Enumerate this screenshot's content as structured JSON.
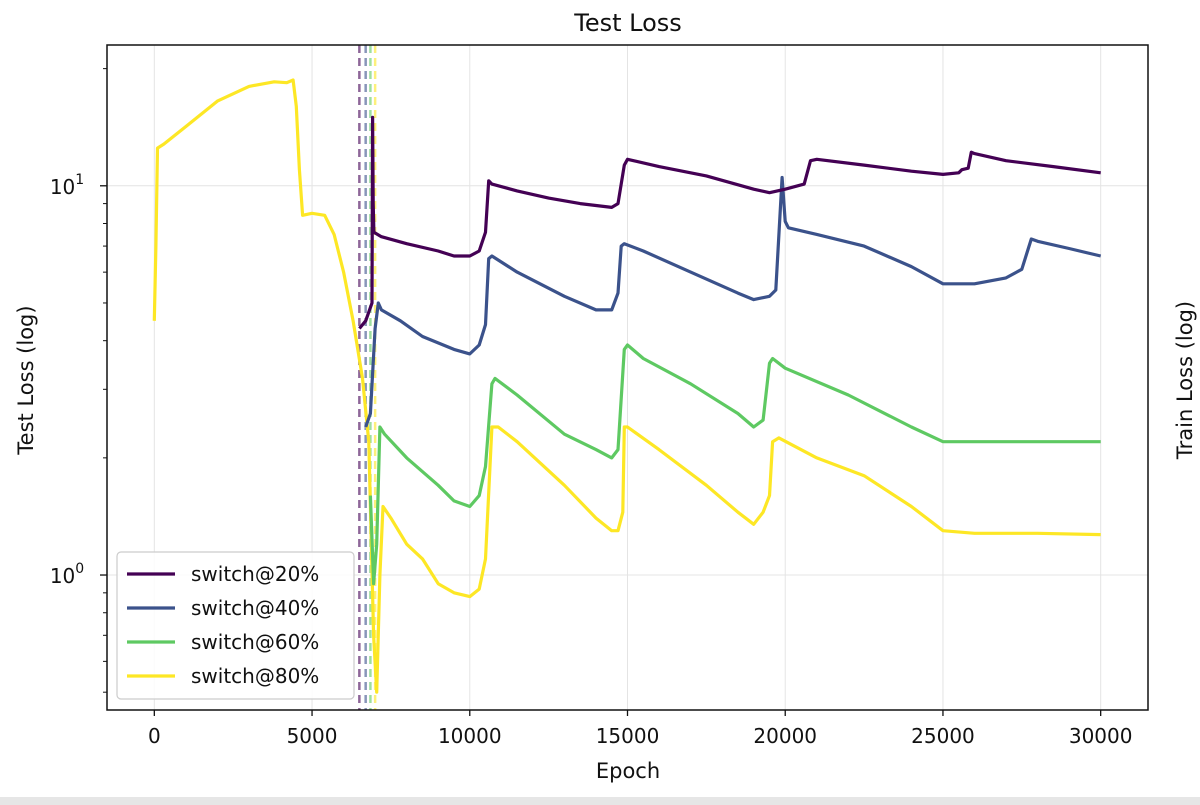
{
  "chart_data": {
    "type": "line",
    "title": "Test Loss",
    "xlabel": "Epoch",
    "ylabel": "Test Loss (log)",
    "y2label": "Train Loss (log)",
    "yscale": "log",
    "xlim": [
      -1500,
      31500
    ],
    "ylim": [
      0.45,
      23
    ],
    "xticks": [
      0,
      5000,
      10000,
      15000,
      20000,
      25000,
      30000
    ],
    "xtick_labels": [
      "0",
      "5000",
      "10000",
      "15000",
      "20000",
      "25000",
      "30000"
    ],
    "yticks": [
      {
        "value": 1,
        "base": "10",
        "exp": "0"
      },
      {
        "value": 10,
        "base": "10",
        "exp": "1"
      }
    ],
    "grid": true,
    "legend_position": "lower-left",
    "vlines": [
      {
        "x": 6500,
        "color": "#440154"
      },
      {
        "x": 6700,
        "color": "#3b528b"
      },
      {
        "x": 6850,
        "color": "#5ec962"
      },
      {
        "x": 7000,
        "color": "#fde725"
      }
    ],
    "series": [
      {
        "name": "switch@20%",
        "color": "#440154",
        "points": [
          [
            6500,
            4.3
          ],
          [
            6700,
            4.5
          ],
          [
            6900,
            5.0
          ],
          [
            6920,
            15.0
          ],
          [
            6940,
            9.0
          ],
          [
            6960,
            7.6
          ],
          [
            7200,
            7.4
          ],
          [
            8000,
            7.1
          ],
          [
            9000,
            6.8
          ],
          [
            9500,
            6.6
          ],
          [
            10000,
            6.6
          ],
          [
            10300,
            6.8
          ],
          [
            10500,
            7.6
          ],
          [
            10600,
            10.3
          ],
          [
            10700,
            10.1
          ],
          [
            11500,
            9.7
          ],
          [
            12500,
            9.3
          ],
          [
            13500,
            9.0
          ],
          [
            14500,
            8.8
          ],
          [
            14700,
            9.0
          ],
          [
            14900,
            11.3
          ],
          [
            15000,
            11.7
          ],
          [
            16000,
            11.2
          ],
          [
            17500,
            10.6
          ],
          [
            19000,
            9.8
          ],
          [
            19500,
            9.6
          ],
          [
            20000,
            9.8
          ],
          [
            20600,
            10.1
          ],
          [
            20800,
            11.6
          ],
          [
            21000,
            11.7
          ],
          [
            22500,
            11.3
          ],
          [
            24000,
            10.9
          ],
          [
            25000,
            10.7
          ],
          [
            25500,
            10.8
          ],
          [
            25600,
            11.0
          ],
          [
            25800,
            11.1
          ],
          [
            25900,
            12.2
          ],
          [
            26000,
            12.1
          ],
          [
            27000,
            11.6
          ],
          [
            28500,
            11.2
          ],
          [
            30000,
            10.8
          ]
        ]
      },
      {
        "name": "switch@40%",
        "color": "#3b528b",
        "points": [
          [
            6700,
            2.4
          ],
          [
            6850,
            2.6
          ],
          [
            7000,
            4.3
          ],
          [
            7100,
            5.0
          ],
          [
            7200,
            4.8
          ],
          [
            7800,
            4.5
          ],
          [
            8500,
            4.1
          ],
          [
            9500,
            3.8
          ],
          [
            10000,
            3.7
          ],
          [
            10300,
            3.9
          ],
          [
            10500,
            4.4
          ],
          [
            10600,
            6.5
          ],
          [
            10700,
            6.6
          ],
          [
            11500,
            6.0
          ],
          [
            13000,
            5.2
          ],
          [
            14000,
            4.8
          ],
          [
            14500,
            4.8
          ],
          [
            14700,
            5.3
          ],
          [
            14800,
            7.0
          ],
          [
            14900,
            7.1
          ],
          [
            15500,
            6.8
          ],
          [
            17000,
            6.0
          ],
          [
            18500,
            5.3
          ],
          [
            19000,
            5.1
          ],
          [
            19500,
            5.2
          ],
          [
            19700,
            5.4
          ],
          [
            19900,
            10.5
          ],
          [
            20000,
            8.1
          ],
          [
            20100,
            7.8
          ],
          [
            21000,
            7.5
          ],
          [
            22500,
            7.0
          ],
          [
            24000,
            6.2
          ],
          [
            25000,
            5.6
          ],
          [
            26000,
            5.6
          ],
          [
            27000,
            5.8
          ],
          [
            27500,
            6.1
          ],
          [
            27800,
            7.3
          ],
          [
            28000,
            7.2
          ],
          [
            29000,
            6.9
          ],
          [
            30000,
            6.6
          ]
        ]
      },
      {
        "name": "switch@60%",
        "color": "#5ec962",
        "points": [
          [
            6850,
            1.6
          ],
          [
            6950,
            0.95
          ],
          [
            7050,
            1.2
          ],
          [
            7150,
            2.4
          ],
          [
            7300,
            2.3
          ],
          [
            8000,
            2.0
          ],
          [
            9000,
            1.7
          ],
          [
            9500,
            1.55
          ],
          [
            10000,
            1.5
          ],
          [
            10300,
            1.6
          ],
          [
            10500,
            1.9
          ],
          [
            10700,
            3.1
          ],
          [
            10800,
            3.2
          ],
          [
            11500,
            2.9
          ],
          [
            13000,
            2.3
          ],
          [
            14000,
            2.1
          ],
          [
            14500,
            2.0
          ],
          [
            14700,
            2.1
          ],
          [
            14900,
            3.8
          ],
          [
            15000,
            3.9
          ],
          [
            15500,
            3.6
          ],
          [
            17000,
            3.1
          ],
          [
            18500,
            2.6
          ],
          [
            19000,
            2.4
          ],
          [
            19300,
            2.5
          ],
          [
            19500,
            3.5
          ],
          [
            19600,
            3.6
          ],
          [
            20000,
            3.4
          ],
          [
            22000,
            2.9
          ],
          [
            24000,
            2.4
          ],
          [
            25000,
            2.2
          ],
          [
            26000,
            2.2
          ],
          [
            28000,
            2.2
          ],
          [
            30000,
            2.2
          ]
        ]
      },
      {
        "name": "switch@80%",
        "color": "#fde725",
        "points": [
          [
            0,
            4.5
          ],
          [
            50,
            7.0
          ],
          [
            100,
            12.5
          ],
          [
            300,
            12.8
          ],
          [
            1000,
            14.2
          ],
          [
            2000,
            16.5
          ],
          [
            3000,
            18.0
          ],
          [
            3800,
            18.5
          ],
          [
            4200,
            18.4
          ],
          [
            4400,
            18.7
          ],
          [
            4500,
            16.0
          ],
          [
            4600,
            11.0
          ],
          [
            4700,
            8.4
          ],
          [
            5000,
            8.5
          ],
          [
            5400,
            8.4
          ],
          [
            5700,
            7.5
          ],
          [
            6000,
            6.0
          ],
          [
            6300,
            4.5
          ],
          [
            6600,
            3.2
          ],
          [
            6800,
            2.2
          ],
          [
            6950,
            0.7
          ],
          [
            7050,
            0.5
          ],
          [
            7150,
            1.0
          ],
          [
            7250,
            1.5
          ],
          [
            7500,
            1.4
          ],
          [
            8000,
            1.2
          ],
          [
            8500,
            1.1
          ],
          [
            9000,
            0.95
          ],
          [
            9500,
            0.9
          ],
          [
            10000,
            0.88
          ],
          [
            10300,
            0.92
          ],
          [
            10500,
            1.1
          ],
          [
            10700,
            2.4
          ],
          [
            10900,
            2.4
          ],
          [
            11500,
            2.2
          ],
          [
            13000,
            1.7
          ],
          [
            14000,
            1.4
          ],
          [
            14500,
            1.3
          ],
          [
            14700,
            1.3
          ],
          [
            14850,
            1.45
          ],
          [
            14900,
            2.4
          ],
          [
            15000,
            2.4
          ],
          [
            16000,
            2.1
          ],
          [
            17500,
            1.7
          ],
          [
            18500,
            1.45
          ],
          [
            19000,
            1.35
          ],
          [
            19300,
            1.45
          ],
          [
            19500,
            1.6
          ],
          [
            19600,
            2.2
          ],
          [
            19800,
            2.25
          ],
          [
            21000,
            2.0
          ],
          [
            22500,
            1.8
          ],
          [
            24000,
            1.5
          ],
          [
            25000,
            1.3
          ],
          [
            26000,
            1.28
          ],
          [
            28000,
            1.28
          ],
          [
            30000,
            1.27
          ]
        ]
      }
    ]
  }
}
